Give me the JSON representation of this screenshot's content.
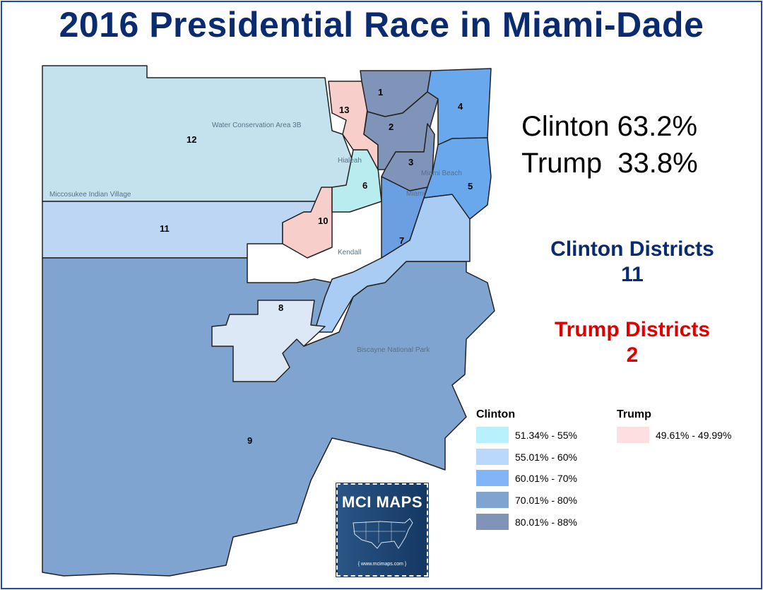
{
  "title": "2016 Presidential Race in Miami-Dade",
  "results": {
    "clinton": "Clinton 63.2%",
    "trump": "Trump  33.8%"
  },
  "district_counts": {
    "clinton_label": "Clinton Districts",
    "clinton_count": "11",
    "trump_label": "Trump Districts",
    "trump_count": "2"
  },
  "colors": {
    "title": "#0b2b70",
    "clinton": "#0b2b70",
    "trump": "#e00000"
  },
  "legend": {
    "clinton_title": "Clinton",
    "clinton_bins": [
      {
        "label": "51.34% - 55%",
        "color": "#b8f0fb"
      },
      {
        "label": "55.01% - 60%",
        "color": "#bad8fb"
      },
      {
        "label": "60.01% - 70%",
        "color": "#80b6f8"
      },
      {
        "label": "70.01% - 80%",
        "color": "#80a4d0"
      },
      {
        "label": "80.01% - 88%",
        "color": "#8093b8"
      }
    ],
    "trump_title": "Trump",
    "trump_bins": [
      {
        "label": "49.61% - 49.99%",
        "color": "#fddfe2"
      }
    ]
  },
  "districts": [
    {
      "id": "1",
      "party": "Clinton",
      "bin": "80.01% - 88%"
    },
    {
      "id": "2",
      "party": "Clinton",
      "bin": "80.01% - 88%"
    },
    {
      "id": "3",
      "party": "Clinton",
      "bin": "80.01% - 88%"
    },
    {
      "id": "4",
      "party": "Clinton",
      "bin": "60.01% - 70%"
    },
    {
      "id": "5",
      "party": "Clinton",
      "bin": "60.01% - 70%"
    },
    {
      "id": "6",
      "party": "Clinton",
      "bin": "51.34% - 55%"
    },
    {
      "id": "7",
      "party": "Clinton",
      "bin": "55.01% - 60%"
    },
    {
      "id": "8",
      "party": "Clinton",
      "bin": "55.01% - 60%"
    },
    {
      "id": "9",
      "party": "Clinton",
      "bin": "70.01% - 80%"
    },
    {
      "id": "10",
      "party": "Trump",
      "bin": "49.61% - 49.99%"
    },
    {
      "id": "11",
      "party": "Clinton",
      "bin": "55.01% - 60%"
    },
    {
      "id": "12",
      "party": "Clinton",
      "bin": "55.01% - 60%"
    },
    {
      "id": "13",
      "party": "Trump",
      "bin": "49.61% - 49.99%"
    }
  ],
  "basemap_labels": {
    "wca": "Water Conservation Area 3B",
    "hialeah": "Hialeah",
    "miami": "Miami",
    "miami_beach": "Miami Beach",
    "kendall": "Kendall",
    "biscayne": "Biscayne National Park",
    "indian_village": "Miccosukee Indian Village"
  },
  "logo": {
    "text": "MCI MAPS",
    "url": "{ www.mcimaps.com }"
  }
}
